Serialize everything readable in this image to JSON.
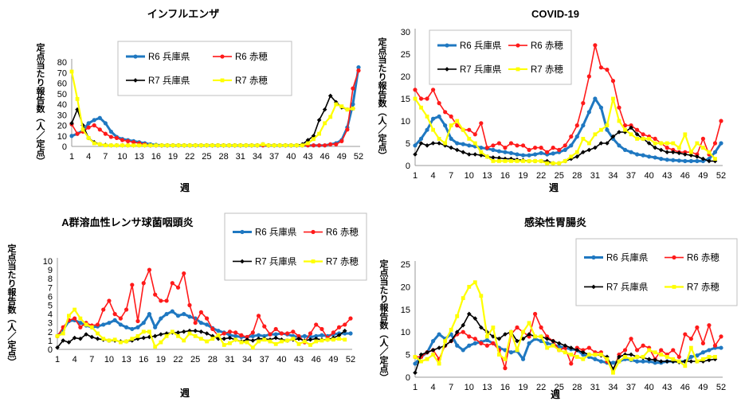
{
  "colors": {
    "r6_hyogo": "#1f78c1",
    "r6_ako": "#ff1a1a",
    "r7_hyogo": "#000000",
    "r7_ako": "#ffff00"
  },
  "common": {
    "xlabel": "週",
    "ylabel": "定点当たり報告数（人／定点）",
    "series_names": [
      "R6 兵庫県",
      "R6 赤穂",
      "R7 兵庫県",
      "R7 赤穂"
    ]
  },
  "chart_data": [
    {
      "id": "influenza",
      "type": "line",
      "title": "インフルエンザ",
      "x": [
        1,
        2,
        3,
        4,
        5,
        6,
        7,
        8,
        9,
        10,
        11,
        12,
        13,
        14,
        15,
        16,
        17,
        18,
        19,
        20,
        21,
        22,
        23,
        24,
        25,
        26,
        27,
        28,
        29,
        30,
        31,
        32,
        33,
        34,
        35,
        36,
        37,
        38,
        39,
        40,
        41,
        42,
        43,
        44,
        45,
        46,
        47,
        48,
        49,
        50,
        51,
        52
      ],
      "xticks": [
        1,
        4,
        7,
        10,
        13,
        16,
        19,
        22,
        25,
        28,
        31,
        34,
        37,
        40,
        43,
        46,
        49,
        52
      ],
      "ylim": [
        0,
        80
      ],
      "yticks": [
        0,
        10,
        20,
        30,
        40,
        50,
        60,
        70,
        80
      ],
      "series": [
        {
          "name": "R6 兵庫県",
          "values": [
            10,
            12,
            15,
            22,
            25,
            27,
            22,
            14,
            9,
            7,
            6,
            5,
            4,
            3,
            2,
            1.5,
            1,
            1,
            1,
            1,
            1,
            1,
            1,
            1,
            1,
            1,
            1,
            1,
            1,
            1,
            1,
            1,
            1,
            1,
            1,
            1,
            1,
            1,
            1,
            1,
            1,
            1,
            1,
            1,
            1,
            1,
            2,
            3,
            6,
            18,
            40,
            75
          ]
        },
        {
          "name": "R6 赤穂",
          "values": [
            21,
            12,
            14,
            18,
            20,
            16,
            12,
            9,
            8,
            6,
            5,
            4,
            3,
            2,
            1,
            1,
            1,
            1,
            1,
            1,
            1,
            1,
            1,
            1,
            1,
            1,
            1,
            1,
            1,
            1,
            1,
            1,
            1,
            1,
            1,
            1,
            1,
            1,
            1,
            1,
            1,
            1,
            1,
            1,
            1,
            1,
            2,
            2,
            5,
            16,
            55,
            72
          ]
        },
        {
          "name": "R7 兵庫県",
          "values": [
            22,
            35,
            20,
            8,
            4,
            2,
            1.5,
            1,
            1,
            1,
            1,
            1,
            1,
            1,
            1,
            1,
            1,
            1,
            1,
            1,
            1,
            1,
            1,
            1,
            1,
            1,
            1,
            1,
            1,
            1,
            1,
            1,
            1,
            1,
            2,
            1,
            1,
            1,
            1,
            1,
            1,
            2,
            6,
            10,
            25,
            35,
            48,
            42,
            37,
            35,
            36,
            null
          ]
        },
        {
          "name": "R7 赤穂",
          "values": [
            71,
            45,
            16,
            8,
            3,
            2,
            1,
            1,
            1,
            1,
            1,
            1,
            1,
            1,
            1,
            1,
            1,
            1,
            1,
            1,
            1,
            1,
            1,
            1,
            1,
            1,
            1,
            1,
            1,
            1,
            1,
            1,
            1,
            1,
            2,
            1,
            1,
            1,
            1,
            1,
            1,
            1,
            3,
            7,
            12,
            22,
            28,
            40,
            38,
            35,
            36,
            null
          ]
        }
      ]
    },
    {
      "id": "covid19",
      "type": "line",
      "title": "COVID-19",
      "x": [
        1,
        2,
        3,
        4,
        5,
        6,
        7,
        8,
        9,
        10,
        11,
        12,
        13,
        14,
        15,
        16,
        17,
        18,
        19,
        20,
        21,
        22,
        23,
        24,
        25,
        26,
        27,
        28,
        29,
        30,
        31,
        32,
        33,
        34,
        35,
        36,
        37,
        38,
        39,
        40,
        41,
        42,
        43,
        44,
        45,
        46,
        47,
        48,
        49,
        50,
        51,
        52
      ],
      "xticks": [
        1,
        4,
        7,
        10,
        13,
        16,
        19,
        22,
        25,
        28,
        31,
        34,
        37,
        40,
        43,
        46,
        49,
        52
      ],
      "ylim": [
        0,
        30
      ],
      "yticks": [
        0,
        5,
        10,
        15,
        20,
        25,
        30
      ],
      "series": [
        {
          "name": "R6 兵庫県",
          "values": [
            4.5,
            6,
            8,
            10.5,
            11,
            9,
            6,
            5,
            4.8,
            4.5,
            4.3,
            4,
            3.8,
            3.5,
            3.2,
            3,
            2.8,
            2.5,
            2.3,
            2.3,
            2.5,
            2.8,
            2.5,
            2.7,
            3,
            3.5,
            4.5,
            6.5,
            9,
            12,
            15,
            13,
            8,
            6,
            4.5,
            3.5,
            3,
            2.5,
            2.3,
            2,
            1.8,
            1.5,
            1.3,
            1.2,
            1.1,
            1,
            1,
            1,
            1,
            1.5,
            3,
            5
          ]
        },
        {
          "name": "R6 赤穂",
          "values": [
            17,
            15,
            15,
            17,
            14,
            12,
            11,
            9,
            8,
            8,
            7,
            9.5,
            4,
            4.5,
            5,
            4,
            5,
            4.5,
            4.5,
            3.5,
            4,
            4,
            3,
            4,
            3.5,
            4.5,
            6.5,
            9,
            14,
            20,
            27,
            22,
            21.5,
            19,
            13,
            9,
            9,
            8,
            7,
            6.5,
            6,
            5,
            4,
            3.5,
            3,
            3,
            3,
            2.5,
            6,
            2.5,
            5,
            10
          ]
        },
        {
          "name": "R7 兵庫県",
          "values": [
            2.5,
            5,
            4.5,
            5,
            5,
            4.5,
            4,
            3.5,
            3,
            2.5,
            2.5,
            2.3,
            2,
            1.8,
            1.7,
            1.5,
            1.5,
            1.3,
            1.2,
            1,
            1,
            1,
            1,
            0.5,
            0.5,
            1,
            1.5,
            2,
            3,
            3.5,
            4,
            5,
            5,
            6.5,
            7.5,
            7.5,
            8.5,
            7,
            6,
            5,
            4,
            3.5,
            3,
            3,
            2.8,
            2.5,
            2.3,
            2,
            1.5,
            1,
            1,
            null
          ]
        },
        {
          "name": "R7 赤穂",
          "values": [
            15,
            13,
            11,
            8,
            6,
            5,
            9,
            10,
            8,
            6,
            5,
            3,
            2,
            1,
            1,
            1,
            1,
            1,
            1,
            1,
            1,
            1,
            0.5,
            0.5,
            0.5,
            1,
            2,
            3,
            6,
            5,
            7,
            8,
            9,
            15,
            10,
            8,
            7,
            6,
            6,
            6,
            5,
            5,
            5,
            5,
            4,
            7,
            3,
            5,
            4,
            3,
            1.5,
            null
          ]
        }
      ]
    },
    {
      "id": "strep",
      "type": "line",
      "title": "A群溶血性レンサ球菌咽頭炎",
      "x": [
        1,
        2,
        3,
        4,
        5,
        6,
        7,
        8,
        9,
        10,
        11,
        12,
        13,
        14,
        15,
        16,
        17,
        18,
        19,
        20,
        21,
        22,
        23,
        24,
        25,
        26,
        27,
        28,
        29,
        30,
        31,
        32,
        33,
        34,
        35,
        36,
        37,
        38,
        39,
        40,
        41,
        42,
        43,
        44,
        45,
        46,
        47,
        48,
        49,
        50,
        51,
        52
      ],
      "xticks": [
        1,
        4,
        7,
        10,
        13,
        16,
        19,
        22,
        25,
        28,
        31,
        34,
        37,
        40,
        43,
        46,
        49,
        52
      ],
      "ylim": [
        0,
        10
      ],
      "yticks": [
        0,
        1,
        2,
        3,
        4,
        5,
        6,
        7,
        8,
        9,
        10
      ],
      "series": [
        {
          "name": "R6 兵庫県",
          "values": [
            1.5,
            2.2,
            3.2,
            3.3,
            3,
            2.7,
            2.5,
            2.6,
            2.8,
            3,
            3.3,
            2.8,
            2.5,
            2.3,
            2.5,
            3,
            4,
            2.5,
            3.5,
            4,
            4.3,
            3.8,
            4,
            3.7,
            3.5,
            3,
            2.8,
            2.4,
            2.1,
            1.9,
            1.6,
            1.5,
            1.4,
            1.4,
            1.5,
            1.6,
            1.5,
            1.7,
            1.7,
            1.8,
            1.7,
            1.5,
            1.4,
            1.5,
            1.4,
            1.5,
            1.6,
            1.5,
            1.7,
            1.8,
            1.8,
            1.8
          ]
        },
        {
          "name": "R6 赤穂",
          "values": [
            1.5,
            2.5,
            3.3,
            3.5,
            2.5,
            3,
            2.7,
            2.8,
            4.5,
            5.5,
            4,
            3.5,
            4.5,
            7.3,
            3.2,
            7.5,
            9,
            6.2,
            5.5,
            5.5,
            7.5,
            7,
            8.6,
            5,
            3,
            4.2,
            3.5,
            2.3,
            1.5,
            1.8,
            2,
            1.9,
            1.6,
            1.4,
            1.9,
            3.8,
            2.6,
            1.7,
            2.3,
            1.8,
            1.8,
            2,
            1.5,
            0.8,
            1.8,
            2.8,
            2.3,
            1.3,
            1.9,
            2.5,
            2.8,
            3.5
          ]
        },
        {
          "name": "R7 兵庫県",
          "values": [
            0.2,
            1,
            0.8,
            1.3,
            1.2,
            1.7,
            1.4,
            1.2,
            1.1,
            1,
            1,
            0.9,
            0.9,
            1,
            1.2,
            1.3,
            1.4,
            1.5,
            1.7,
            1.8,
            1.9,
            1.9,
            2,
            2.1,
            2.1,
            2,
            1.8,
            1.5,
            1.2,
            1.2,
            1.3,
            1.1,
            0.9,
            1.1,
            1,
            1.2,
            1.2,
            1.1,
            1.3,
            1.1,
            1,
            1.1,
            1.2,
            1,
            1.1,
            1.2,
            1.1,
            1.1,
            1.3,
            1.6,
            2.1,
            null
          ]
        },
        {
          "name": "R7 赤穂",
          "values": [
            1.5,
            1.8,
            3.8,
            4.5,
            3.5,
            2.8,
            2.5,
            1.8,
            1.2,
            1,
            1.1,
            0.8,
            0.9,
            1.2,
            1.5,
            2,
            2,
            0.3,
            0.8,
            1.5,
            2,
            1.5,
            1,
            1.8,
            1.5,
            1.2,
            0.9,
            1.2,
            1.6,
            0.5,
            0.7,
            1.1,
            0.8,
            0.8,
            0.2,
            0.9,
            1.1,
            0.9,
            0.6,
            0.9,
            1,
            1.2,
            0.6,
            0.9,
            0.5,
            0.9,
            1,
            1.1,
            1.1,
            1.2,
            1.1,
            null
          ]
        }
      ]
    },
    {
      "id": "gastro",
      "type": "line",
      "title": "感染性胃腸炎",
      "x": [
        1,
        2,
        3,
        4,
        5,
        6,
        7,
        8,
        9,
        10,
        11,
        12,
        13,
        14,
        15,
        16,
        17,
        18,
        19,
        20,
        21,
        22,
        23,
        24,
        25,
        26,
        27,
        28,
        29,
        30,
        31,
        32,
        33,
        34,
        35,
        36,
        37,
        38,
        39,
        40,
        41,
        42,
        43,
        44,
        45,
        46,
        47,
        48,
        49,
        50,
        51,
        52
      ],
      "xticks": [
        1,
        4,
        7,
        10,
        13,
        16,
        19,
        22,
        25,
        28,
        31,
        34,
        37,
        40,
        43,
        46,
        49,
        52
      ],
      "ylim": [
        0,
        25
      ],
      "yticks": [
        0,
        5,
        10,
        15,
        20,
        25
      ],
      "series": [
        {
          "name": "R6 兵庫県",
          "values": [
            3,
            4.5,
            5.5,
            8,
            9.5,
            8.5,
            9.5,
            7,
            6,
            7,
            7.5,
            7.8,
            8.2,
            7.5,
            6.5,
            6,
            5.5,
            5.8,
            4,
            7.5,
            8.5,
            8,
            7.5,
            7.2,
            6.8,
            6.5,
            6.2,
            6,
            5,
            4.5,
            4,
            3.5,
            3.2,
            3.2,
            3.5,
            4,
            3.8,
            3.5,
            3.5,
            3.5,
            3.2,
            3.2,
            3.5,
            3.5,
            3.5,
            3.5,
            4.5,
            4.8,
            5.5,
            6,
            6.5,
            6.5
          ]
        },
        {
          "name": "R6 赤穂",
          "values": [
            4.5,
            4.5,
            5.5,
            6,
            4,
            7,
            8,
            9.5,
            10,
            9,
            8.5,
            7.5,
            7,
            7.5,
            6,
            2,
            9.5,
            11,
            10,
            9,
            14,
            11,
            9,
            8,
            6,
            6.5,
            3,
            6.5,
            6,
            6.5,
            5.5,
            5.5,
            3.5,
            1.5,
            5,
            6,
            8.5,
            6,
            7,
            6.5,
            4,
            6,
            5,
            6,
            4.5,
            9.5,
            8.5,
            11,
            7.5,
            11.5,
            7,
            9
          ]
        },
        {
          "name": "R7 兵庫県",
          "values": [
            1,
            5,
            5.5,
            6,
            6.5,
            7,
            8,
            10,
            11.5,
            14,
            13,
            11,
            10,
            9,
            8.5,
            9.5,
            10,
            8,
            8.5,
            9.5,
            9,
            9,
            8.5,
            8,
            7.5,
            7,
            6.5,
            6,
            5.5,
            5,
            5,
            4.8,
            4.5,
            1.8,
            4.5,
            5,
            5,
            4.5,
            4.3,
            4,
            3.8,
            3.5,
            3.5,
            3.5,
            3.3,
            3.5,
            3.5,
            3.5,
            3.5,
            3.8,
            4,
            null
          ]
        },
        {
          "name": "R7 赤穂",
          "values": [
            4.5,
            3.5,
            4,
            5,
            3,
            8,
            10.5,
            13.5,
            17.5,
            20,
            21,
            18,
            9,
            11,
            5,
            4,
            10,
            6,
            10,
            12,
            9,
            9,
            6.5,
            7,
            6,
            5.5,
            5,
            4.5,
            4,
            5,
            5,
            5,
            4,
            1,
            3.5,
            4.5,
            4,
            4.5,
            4.5,
            6,
            5.5,
            5,
            4.5,
            4,
            3.5,
            2.5,
            6.5,
            3.5,
            4,
            4.5,
            4.5,
            null
          ]
        }
      ]
    }
  ]
}
